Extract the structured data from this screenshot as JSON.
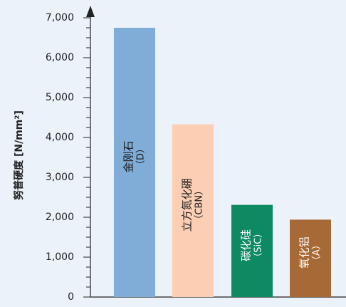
{
  "chart_data": {
    "type": "bar",
    "ylabel": "努普硬度 [N/mm²]",
    "ylim": [
      0,
      7000
    ],
    "yticks": [
      "0",
      "1,000",
      "2,000",
      "3,000",
      "4,000",
      "5,000",
      "6,000",
      "7,000"
    ],
    "categories": [
      {
        "name": "金刚石",
        "sub": "（D）",
        "value": 6750,
        "color": "#7fadd8",
        "text_color": "#1a1a1a"
      },
      {
        "name": "立方氮化硼",
        "sub": "（CBN）",
        "value": 4330,
        "color": "#fcceb4",
        "text_color": "#1a1a1a"
      },
      {
        "name": "碳化硅",
        "sub": "（SiC）",
        "value": 2310,
        "color": "#0d8a62",
        "text_color": "#ffffff"
      },
      {
        "name": "氧化铝",
        "sub": "（A）",
        "value": 1940,
        "color": "#a76a36",
        "text_color": "#ffffff"
      }
    ],
    "grid": false
  }
}
